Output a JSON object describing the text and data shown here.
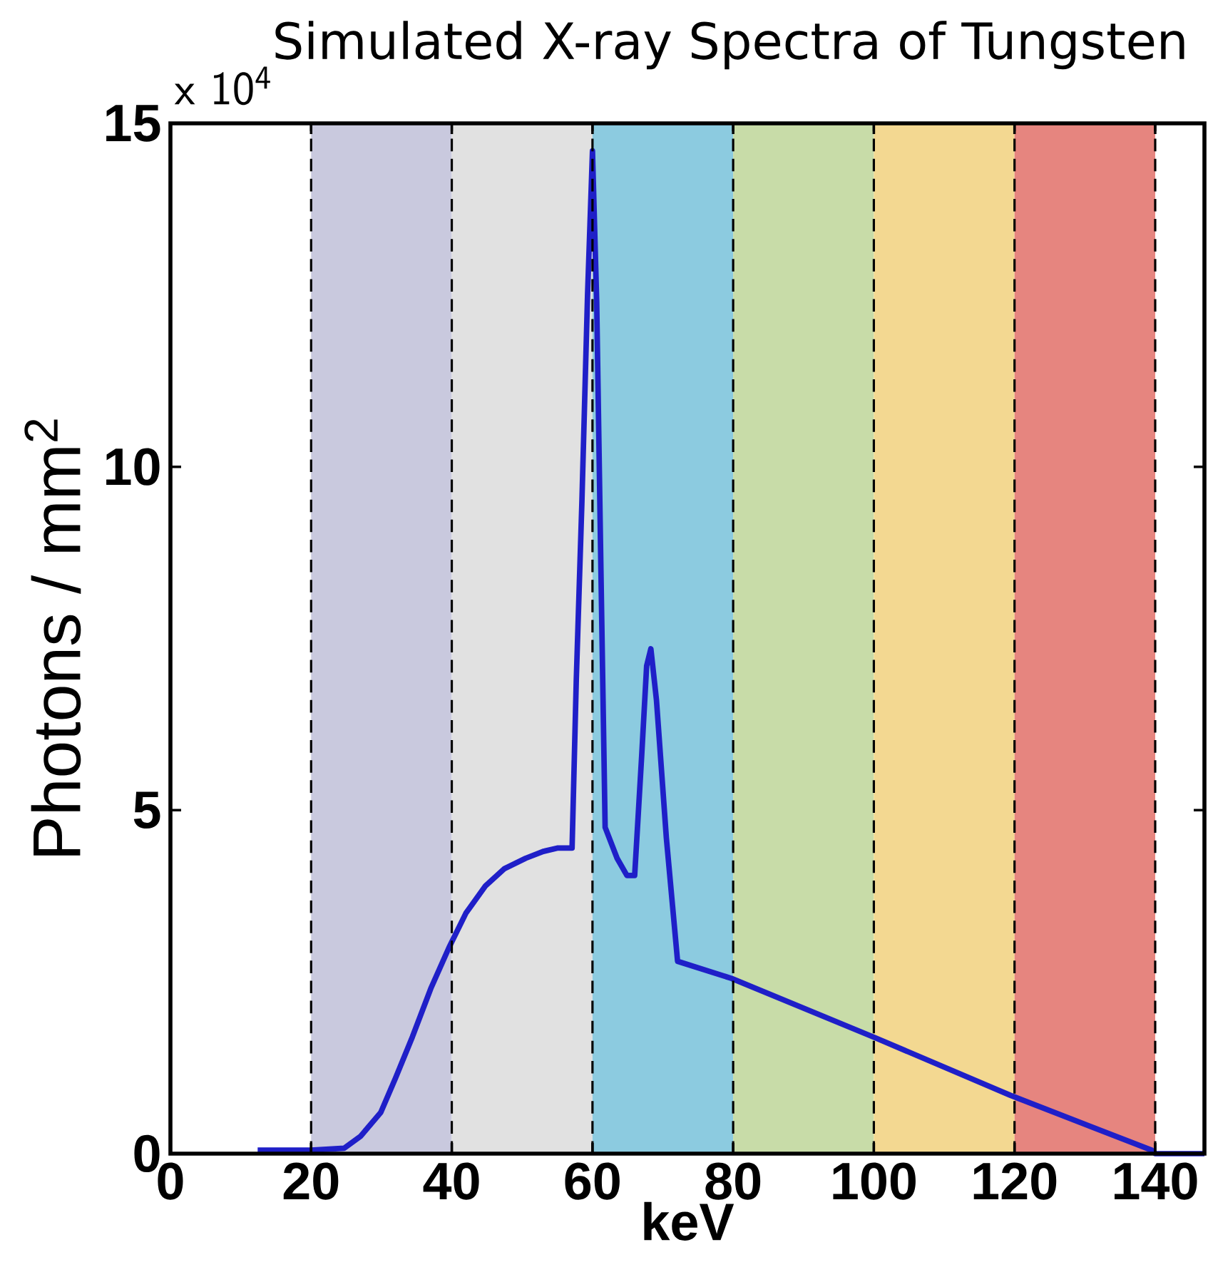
{
  "chart_data": {
    "type": "line",
    "title": "Simulated X-ray Spectra of Tungsten",
    "xlabel": "keV",
    "ylabel": "Photons / mm$^{2}$",
    "annotations": [
      "x 10$^{4}$"
    ],
    "xlim": [
      0,
      147
    ],
    "ylim": [
      0,
      15
    ],
    "xticks": [
      0,
      20,
      40,
      60,
      80,
      100,
      120,
      140
    ],
    "yticks": [
      0,
      5,
      10,
      15
    ],
    "x": [
      12.4,
      20,
      24.7,
      27,
      29.9,
      32,
      34.4,
      37,
      39.6,
      42,
      44.8,
      47.5,
      50.5,
      53,
      55.1,
      57.1,
      57.7,
      58.5,
      59.3,
      60.0,
      60.6,
      61.2,
      61.8,
      63.5,
      64.9,
      66.0,
      67.0,
      67.7,
      68.3,
      69.1,
      70.5,
      72.1,
      79.8,
      99.9,
      119.4,
      139.5,
      140,
      147
    ],
    "series": [
      {
        "color": "#1f1fc8",
        "values": [
          0.05,
          0.05,
          0.08,
          0.25,
          0.6,
          1.1,
          1.7,
          2.4,
          3.0,
          3.5,
          3.9,
          4.15,
          4.3,
          4.4,
          4.45,
          4.45,
          6.9,
          9.5,
          12.5,
          14.6,
          12.4,
          8.5,
          4.75,
          4.3,
          4.05,
          4.05,
          5.8,
          7.1,
          7.35,
          6.6,
          4.6,
          2.8,
          2.55,
          1.7,
          0.85,
          0.05,
          0,
          0
        ]
      }
    ],
    "bands": [
      {
        "axis": "x",
        "from": 20,
        "to": 40,
        "color": "#c9c9de"
      },
      {
        "axis": "x",
        "from": 40,
        "to": 60,
        "color": "#e1e1e1"
      },
      {
        "axis": "x",
        "from": 60,
        "to": 80,
        "color": "#8ccbe0"
      },
      {
        "axis": "x",
        "from": 80,
        "to": 100,
        "color": "#c8dca8"
      },
      {
        "axis": "x",
        "from": 100,
        "to": 120,
        "color": "#f3d891"
      },
      {
        "axis": "x",
        "from": 120,
        "to": 140,
        "color": "#e6857f"
      }
    ],
    "grid": "x",
    "marker": "none",
    "line_style": "solid"
  }
}
